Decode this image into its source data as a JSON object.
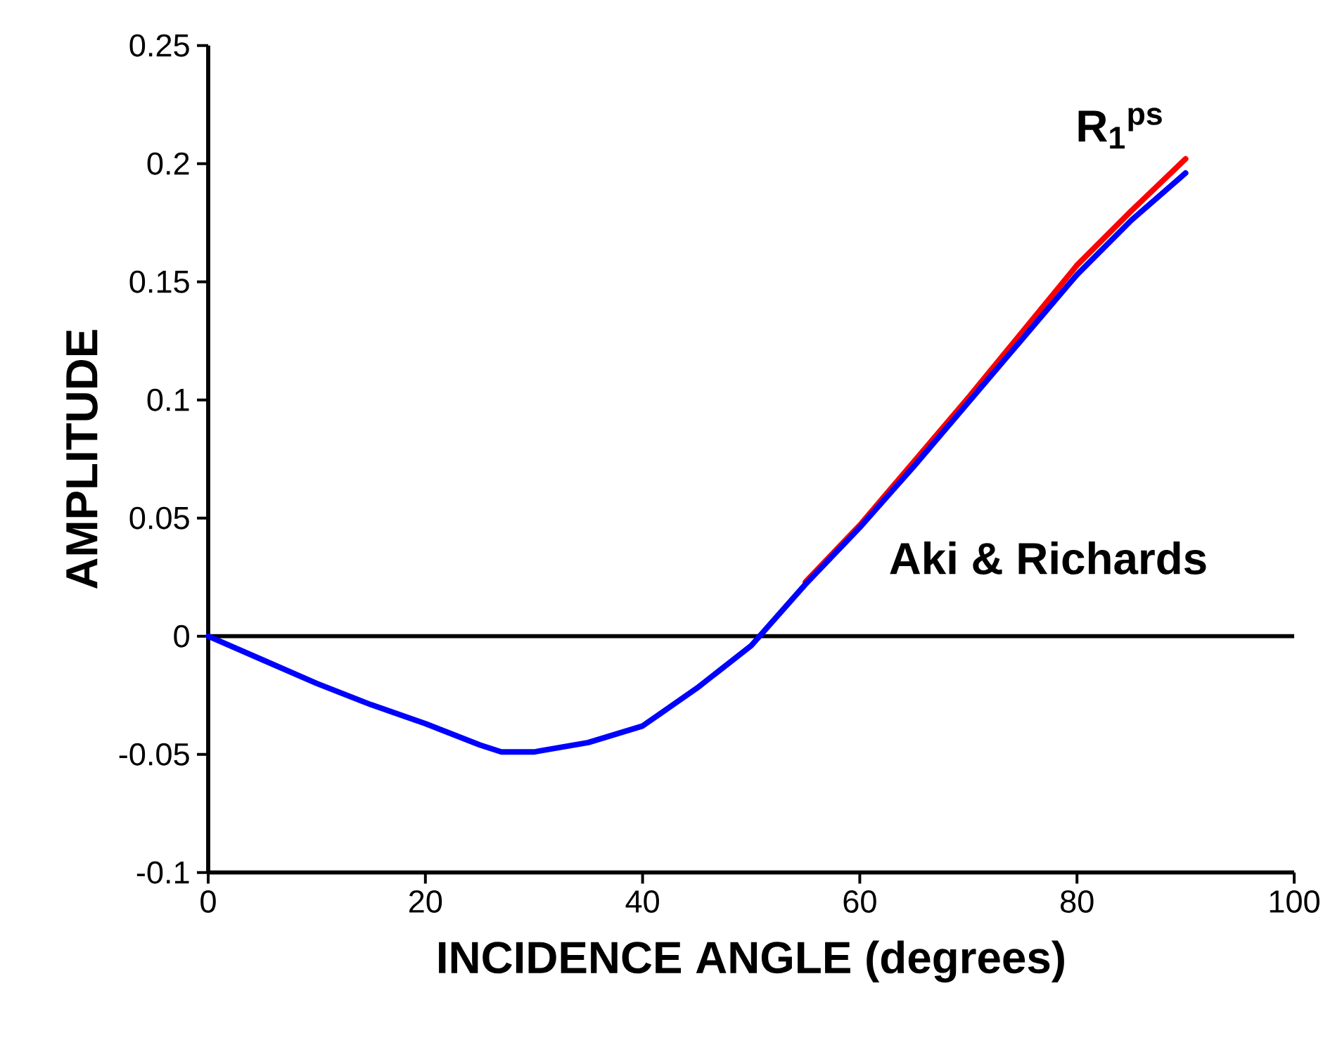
{
  "chart_data": {
    "type": "line",
    "xlabel": "INCIDENCE ANGLE (degrees)",
    "ylabel": "AMPLITUDE",
    "xlim": [
      0,
      100
    ],
    "xticks": [
      0,
      20,
      40,
      60,
      80,
      100
    ],
    "ylim": [
      -0.1,
      0.25
    ],
    "yticks": [
      -0.1,
      -0.05,
      0,
      0.05,
      0.1,
      0.15,
      0.2,
      0.25
    ],
    "grid": false,
    "legend": false,
    "marker": "none",
    "line_style": "solid",
    "ref_lines": [
      {
        "axis": "y",
        "value": 0,
        "color": "#000000"
      }
    ],
    "series": [
      {
        "name": "R$_{1}$$^{ps}$",
        "color": "#ff0000",
        "x": [
          55,
          60,
          65,
          70,
          75,
          80,
          85,
          90
        ],
        "values": [
          0.023,
          0.047,
          0.074,
          0.101,
          0.129,
          0.157,
          0.18,
          0.202
        ]
      },
      {
        "name": "Aki & Richards",
        "color": "#0000ff",
        "x": [
          0,
          5,
          10,
          15,
          20,
          25,
          27,
          30,
          35,
          40,
          45,
          50,
          55,
          60,
          65,
          70,
          75,
          80,
          85,
          90
        ],
        "values": [
          0,
          -0.01,
          -0.02,
          -0.029,
          -0.037,
          -0.046,
          -0.049,
          -0.049,
          -0.045,
          -0.038,
          -0.022,
          -0.004,
          0.022,
          0.046,
          0.072,
          0.099,
          0.126,
          0.153,
          0.176,
          0.196
        ]
      }
    ]
  }
}
